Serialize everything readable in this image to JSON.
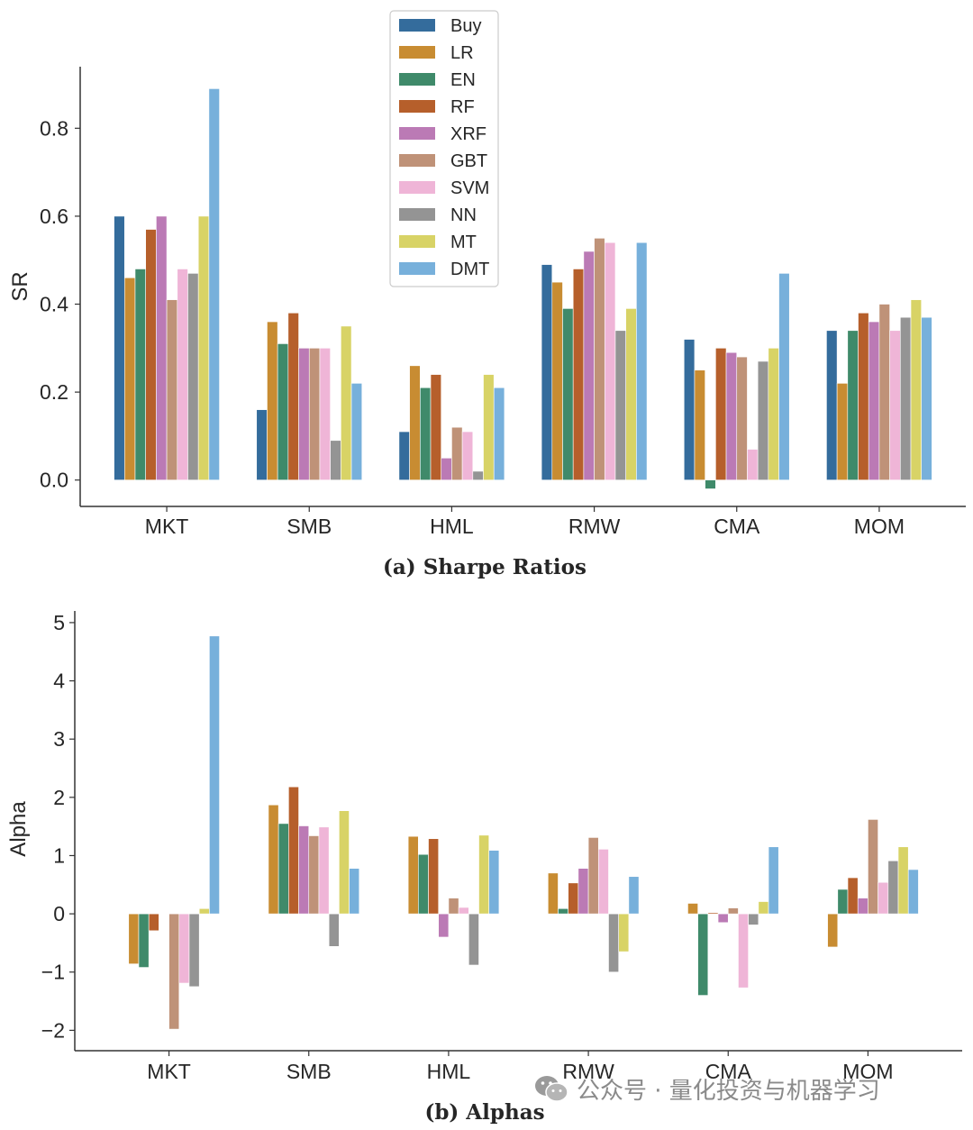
{
  "colors": {
    "Buy": "#346c9c",
    "LR": "#c88c32",
    "EN": "#3f8a6a",
    "RF": "#b65f2b",
    "XRF": "#bb7ab5",
    "GBT": "#bf9278",
    "SVM": "#efb5d7",
    "NN": "#949494",
    "MT": "#d8d366",
    "DMT": "#77b0db"
  },
  "watermark": {
    "icon": "wechat-icon",
    "text": "公众号 · 量化投资与机器学习"
  },
  "chart_data": [
    {
      "type": "bar",
      "caption": "(a) Sharpe Ratios",
      "ylabel": "SR",
      "xlabel": "",
      "ylim": [
        -0.06,
        0.94
      ],
      "yticks": [
        0.0,
        0.2,
        0.4,
        0.6,
        0.8
      ],
      "ytick_labels": [
        "0.0",
        "0.2",
        "0.4",
        "0.6",
        "0.8"
      ],
      "grid": false,
      "legend": "top",
      "categories": [
        "MKT",
        "SMB",
        "HML",
        "RMW",
        "CMA",
        "MOM"
      ],
      "series": [
        {
          "name": "Buy",
          "values": [
            0.6,
            0.16,
            0.11,
            0.49,
            0.32,
            0.34
          ]
        },
        {
          "name": "LR",
          "values": [
            0.46,
            0.36,
            0.26,
            0.45,
            0.25,
            0.22
          ]
        },
        {
          "name": "EN",
          "values": [
            0.48,
            0.31,
            0.21,
            0.39,
            -0.02,
            0.34
          ]
        },
        {
          "name": "RF",
          "values": [
            0.57,
            0.38,
            0.24,
            0.48,
            0.3,
            0.38
          ]
        },
        {
          "name": "XRF",
          "values": [
            0.6,
            0.3,
            0.05,
            0.52,
            0.29,
            0.36
          ]
        },
        {
          "name": "GBT",
          "values": [
            0.41,
            0.3,
            0.12,
            0.55,
            0.28,
            0.4
          ]
        },
        {
          "name": "SVM",
          "values": [
            0.48,
            0.3,
            0.11,
            0.54,
            0.07,
            0.34
          ]
        },
        {
          "name": "NN",
          "values": [
            0.47,
            0.09,
            0.02,
            0.34,
            0.27,
            0.37
          ]
        },
        {
          "name": "MT",
          "values": [
            0.6,
            0.35,
            0.24,
            0.39,
            0.3,
            0.41
          ]
        },
        {
          "name": "DMT",
          "values": [
            0.89,
            0.22,
            0.21,
            0.54,
            0.47,
            0.37
          ]
        }
      ]
    },
    {
      "type": "bar",
      "caption": "(b) Alphas",
      "ylabel": "Alpha",
      "xlabel": "",
      "ylim": [
        -2.35,
        5.2
      ],
      "yticks": [
        -2,
        -1,
        0,
        1,
        2,
        3,
        4,
        5
      ],
      "ytick_labels": [
        "−2",
        "−1",
        "0",
        "1",
        "2",
        "3",
        "4",
        "5"
      ],
      "grid": false,
      "legend": "none",
      "categories": [
        "MKT",
        "SMB",
        "HML",
        "RMW",
        "CMA",
        "MOM"
      ],
      "series": [
        {
          "name": "Buy",
          "values": [
            0.0,
            0.0,
            0.0,
            0.0,
            0.0,
            0.0
          ]
        },
        {
          "name": "LR",
          "values": [
            -0.86,
            1.87,
            1.33,
            0.7,
            0.18,
            -0.57
          ]
        },
        {
          "name": "EN",
          "values": [
            -0.92,
            1.55,
            1.02,
            0.09,
            -1.4,
            0.42
          ]
        },
        {
          "name": "RF",
          "values": [
            -0.29,
            2.18,
            1.29,
            0.53,
            0.02,
            0.62
          ]
        },
        {
          "name": "XRF",
          "values": [
            0.0,
            1.51,
            -0.4,
            0.78,
            -0.15,
            0.27
          ]
        },
        {
          "name": "GBT",
          "values": [
            -1.98,
            1.34,
            0.27,
            1.31,
            0.1,
            1.62
          ]
        },
        {
          "name": "SVM",
          "values": [
            -1.19,
            1.49,
            0.11,
            1.11,
            -1.27,
            0.54
          ]
        },
        {
          "name": "NN",
          "values": [
            -1.25,
            -0.56,
            -0.88,
            -1.0,
            -0.19,
            0.91
          ]
        },
        {
          "name": "MT",
          "values": [
            0.09,
            1.77,
            1.35,
            -0.65,
            0.21,
            1.15
          ]
        },
        {
          "name": "DMT",
          "values": [
            4.77,
            0.78,
            1.09,
            0.64,
            1.15,
            0.76
          ]
        }
      ]
    }
  ]
}
